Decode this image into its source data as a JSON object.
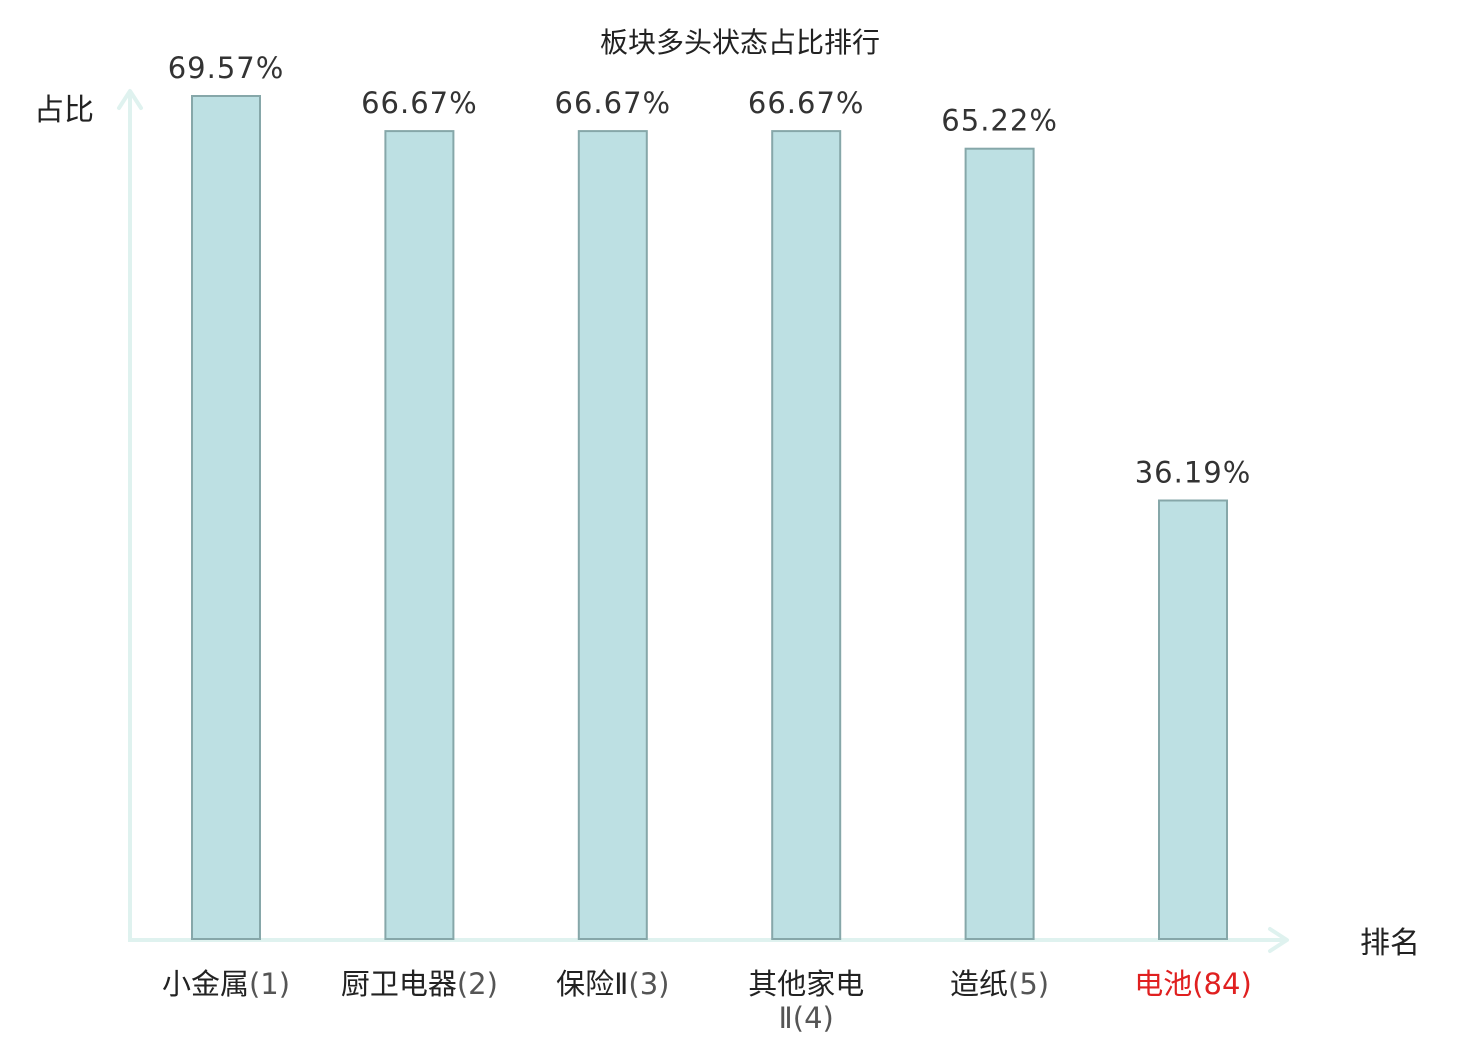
{
  "chart_data": {
    "type": "bar",
    "title": "板块多头状态占比排行",
    "xlabel": "排名",
    "ylabel": "占比",
    "categories": [
      {
        "name": "小金属",
        "rank": "(1)"
      },
      {
        "name": "厨卫电器",
        "rank": "(2)"
      },
      {
        "name": "保险Ⅱ",
        "rank": "(3)"
      },
      {
        "name": "其他家电",
        "name2": "Ⅱ",
        "rank": "(4)"
      },
      {
        "name": "造纸",
        "rank": "(5)"
      },
      {
        "name": "电池",
        "rank": "(84)",
        "highlight": true
      }
    ],
    "values": [
      69.57,
      66.67,
      66.67,
      66.67,
      65.22,
      36.19
    ],
    "value_labels": [
      "69.57%",
      "66.67%",
      "66.67%",
      "66.67%",
      "65.22%",
      "36.19%"
    ],
    "ylim": [
      0,
      69.57
    ],
    "grid": false,
    "legend": "none"
  },
  "colors": {
    "bar_fill": "#bde0e3",
    "bar_stroke": "#86a7a9",
    "axis": "#dff2ef",
    "highlight": "#e02020",
    "text": "#222222"
  }
}
